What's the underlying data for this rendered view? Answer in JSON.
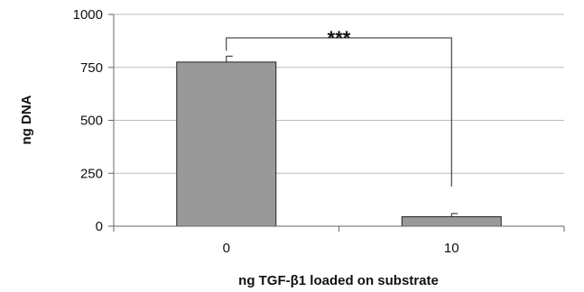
{
  "chart_data": {
    "type": "bar",
    "categories": [
      "0",
      "10"
    ],
    "values": [
      775,
      45
    ],
    "errors": [
      28,
      15
    ],
    "xlabel": "ng TGF-β1 loaded on substrate",
    "ylabel": "ng DNA",
    "ylim": [
      0,
      1000
    ],
    "yticks": [
      0,
      250,
      500,
      750,
      1000
    ],
    "grid": true,
    "bar_color": "#999999",
    "significance": {
      "label": "***",
      "between": [
        0,
        1
      ]
    }
  }
}
